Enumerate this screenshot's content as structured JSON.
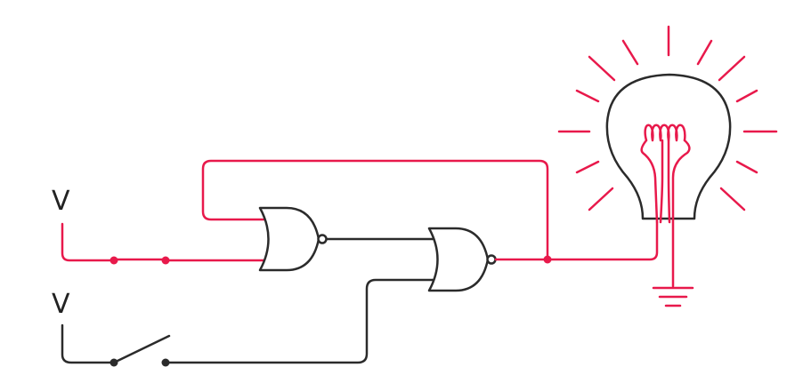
{
  "labels": {
    "supply_top": "V",
    "supply_bottom": "V"
  },
  "components": {
    "switch_top": "closed",
    "switch_bottom": "open",
    "gate_1": "nor-gate",
    "gate_2": "nor-gate",
    "lamp": "lit"
  },
  "colors": {
    "active": "#e8194b",
    "inactive": "#2b2b2b",
    "background": "#ffffff"
  }
}
